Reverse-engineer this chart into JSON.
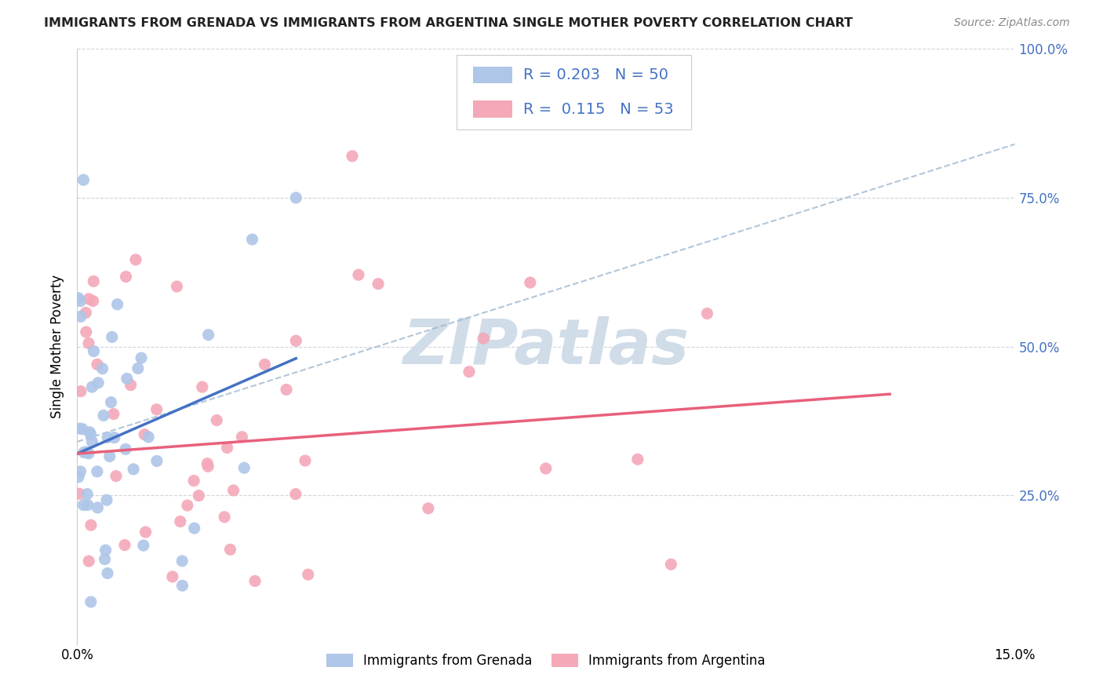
{
  "title": "IMMIGRANTS FROM GRENADA VS IMMIGRANTS FROM ARGENTINA SINGLE MOTHER POVERTY CORRELATION CHART",
  "source_text": "Source: ZipAtlas.com",
  "ylabel": "Single Mother Poverty",
  "xlim": [
    0.0,
    0.15
  ],
  "ylim": [
    0.0,
    1.0
  ],
  "xtick_values": [
    0.0,
    0.15
  ],
  "xtick_labels": [
    "0.0%",
    "15.0%"
  ],
  "ytick_values": [
    0.25,
    0.5,
    0.75,
    1.0
  ],
  "ytick_labels": [
    "25.0%",
    "50.0%",
    "75.0%",
    "100.0%"
  ],
  "grenada_R": 0.203,
  "grenada_N": 50,
  "argentina_R": 0.115,
  "argentina_N": 53,
  "grenada_color": "#aec6e8",
  "argentina_color": "#f4a8b8",
  "grenada_line_color": "#4472c4",
  "argentina_line_color": "#e8607a",
  "diag_line_color": "#a0b8d0",
  "tick_color": "#4472c4",
  "background_color": "#ffffff",
  "watermark_color": "#d0dce8",
  "grid_color": "#c8d0d8",
  "legend_label_grenada": "Immigrants from Grenada",
  "legend_label_argentina": "Immigrants from Argentina",
  "grenada_trend_x": [
    0.0,
    0.035
  ],
  "grenada_trend_y": [
    0.32,
    0.48
  ],
  "argentina_trend_x": [
    0.0,
    0.13
  ],
  "argentina_trend_y": [
    0.32,
    0.42
  ],
  "diag_trend_x": [
    0.0,
    0.15
  ],
  "diag_trend_y": [
    0.34,
    0.84
  ]
}
